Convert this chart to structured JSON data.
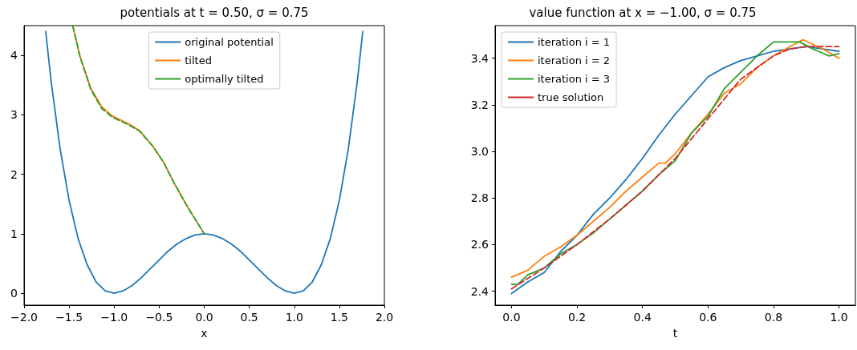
{
  "chart_data": [
    {
      "type": "line",
      "title": "potentials at t = 0.50, σ = 0.75",
      "xlabel": "x",
      "xlim": [
        -2,
        2
      ],
      "ylim": [
        -0.2,
        4.5
      ],
      "xticks": [
        {
          "value": -2,
          "label": "−2.0"
        },
        {
          "value": -1.5,
          "label": "−1.5"
        },
        {
          "value": -1,
          "label": "−1.0"
        },
        {
          "value": -0.5,
          "label": "−0.5"
        },
        {
          "value": 0,
          "label": "0.0"
        },
        {
          "value": 0.5,
          "label": "0.5"
        },
        {
          "value": 1,
          "label": "1.0"
        },
        {
          "value": 1.5,
          "label": "1.5"
        },
        {
          "value": 2,
          "label": "2.0"
        }
      ],
      "yticks": [
        0,
        1,
        2,
        3,
        4
      ],
      "grid": false,
      "legend": "top",
      "marker": "none",
      "series": [
        {
          "name": "original potential",
          "color": "#1f77b4",
          "line_style": "solid",
          "x": [
            -1.76,
            -1.7,
            -1.6,
            -1.5,
            -1.4,
            -1.3,
            -1.2,
            -1.1,
            -1,
            -0.9,
            -0.8,
            -0.7,
            -0.6,
            -0.5,
            -0.4,
            -0.3,
            -0.2,
            -0.1,
            0,
            0.1,
            0.2,
            0.3,
            0.4,
            0.5,
            0.6,
            0.7,
            0.8,
            0.9,
            1,
            1.1,
            1.2,
            1.3,
            1.4,
            1.5,
            1.6,
            1.7,
            1.76
          ],
          "values": [
            4.4,
            3.57,
            2.43,
            1.56,
            0.92,
            0.48,
            0.19,
            0.04,
            0,
            0.04,
            0.13,
            0.26,
            0.41,
            0.56,
            0.71,
            0.83,
            0.92,
            0.98,
            1,
            0.98,
            0.92,
            0.83,
            0.71,
            0.56,
            0.41,
            0.26,
            0.13,
            0.04,
            0,
            0.04,
            0.19,
            0.48,
            0.92,
            1.56,
            2.43,
            3.57,
            4.4
          ]
        },
        {
          "name": "tilted",
          "color": "#ff7f0e",
          "line_style": "solid",
          "x": [
            -1.46,
            -1.38,
            -1.26,
            -1.14,
            -1.02,
            -0.84,
            -0.72,
            -0.57,
            -0.45,
            -0.33,
            -0.18,
            0
          ],
          "values": [
            4.5,
            3.99,
            3.45,
            3.14,
            2.98,
            2.85,
            2.74,
            2.47,
            2.2,
            1.84,
            1.44,
            1
          ]
        },
        {
          "name": "optimally tilted",
          "color": "#2ca02c",
          "line_style": "dashed",
          "x": [
            -1.46,
            -1.38,
            -1.26,
            -1.14,
            -1.02,
            -0.84,
            -0.72,
            -0.57,
            -0.45,
            -0.33,
            -0.18,
            0
          ],
          "values": [
            4.5,
            3.98,
            3.43,
            3.11,
            2.96,
            2.83,
            2.73,
            2.47,
            2.2,
            1.84,
            1.44,
            1
          ]
        }
      ]
    },
    {
      "type": "line",
      "title": "value function at x = −1.00, σ = 0.75",
      "xlabel": "t",
      "xlim": [
        -0.05,
        1.05
      ],
      "ylim": [
        2.34,
        3.54
      ],
      "xticks": [
        {
          "value": 0,
          "label": "0.0"
        },
        {
          "value": 0.2,
          "label": "0.2"
        },
        {
          "value": 0.4,
          "label": "0.4"
        },
        {
          "value": 0.6,
          "label": "0.6"
        },
        {
          "value": 0.8,
          "label": "0.8"
        },
        {
          "value": 1,
          "label": "1.0"
        }
      ],
      "yticks": [
        2.4,
        2.6,
        2.8,
        {
          "value": 3,
          "label": "3.0"
        },
        3.2,
        3.4
      ],
      "grid": false,
      "legend": "top left",
      "marker": "none",
      "series": [
        {
          "name": "iteration i = 1",
          "color": "#1f77b4",
          "line_style": "solid",
          "x": [
            0,
            0.05,
            0.1,
            0.15,
            0.2,
            0.25,
            0.3,
            0.35,
            0.4,
            0.45,
            0.5,
            0.55,
            0.6,
            0.65,
            0.7,
            0.75,
            0.8,
            0.85,
            0.9,
            0.95,
            1
          ],
          "values": [
            2.39,
            2.44,
            2.48,
            2.57,
            2.64,
            2.73,
            2.8,
            2.88,
            2.97,
            3.07,
            3.16,
            3.24,
            3.32,
            3.36,
            3.39,
            3.41,
            3.43,
            3.44,
            3.45,
            3.44,
            3.43
          ]
        },
        {
          "name": "iteration i = 2",
          "color": "#ff7f0e",
          "line_style": "solid",
          "x": [
            0,
            0.05,
            0.1,
            0.15,
            0.2,
            0.25,
            0.3,
            0.35,
            0.4,
            0.45,
            0.47,
            0.5,
            0.55,
            0.6,
            0.65,
            0.7,
            0.75,
            0.8,
            0.85,
            0.89,
            0.95,
            1
          ],
          "values": [
            2.46,
            2.49,
            2.55,
            2.59,
            2.64,
            2.7,
            2.76,
            2.83,
            2.89,
            2.95,
            2.95,
            2.99,
            3.08,
            3.16,
            3.25,
            3.29,
            3.36,
            3.41,
            3.45,
            3.48,
            3.44,
            3.4
          ]
        },
        {
          "name": "iteration i = 3",
          "color": "#2ca02c",
          "line_style": "solid",
          "x": [
            0,
            0.02,
            0.05,
            0.1,
            0.15,
            0.2,
            0.25,
            0.3,
            0.35,
            0.4,
            0.45,
            0.5,
            0.55,
            0.6,
            0.65,
            0.7,
            0.75,
            0.8,
            0.85,
            0.88,
            0.92,
            0.97,
            1
          ],
          "values": [
            2.43,
            2.43,
            2.47,
            2.5,
            2.56,
            2.6,
            2.65,
            2.71,
            2.77,
            2.83,
            2.9,
            2.96,
            3.08,
            3.15,
            3.27,
            3.34,
            3.41,
            3.47,
            3.47,
            3.47,
            3.44,
            3.41,
            3.42
          ]
        },
        {
          "name": "true solution",
          "color": "#d62728",
          "line_style": "dashed",
          "x": [
            0,
            0.1,
            0.2,
            0.3,
            0.4,
            0.5,
            0.6,
            0.7,
            0.8,
            0.85,
            0.9,
            1
          ],
          "values": [
            2.41,
            2.5,
            2.6,
            2.71,
            2.83,
            2.97,
            3.14,
            3.31,
            3.41,
            3.44,
            3.45,
            3.45
          ]
        }
      ]
    }
  ]
}
